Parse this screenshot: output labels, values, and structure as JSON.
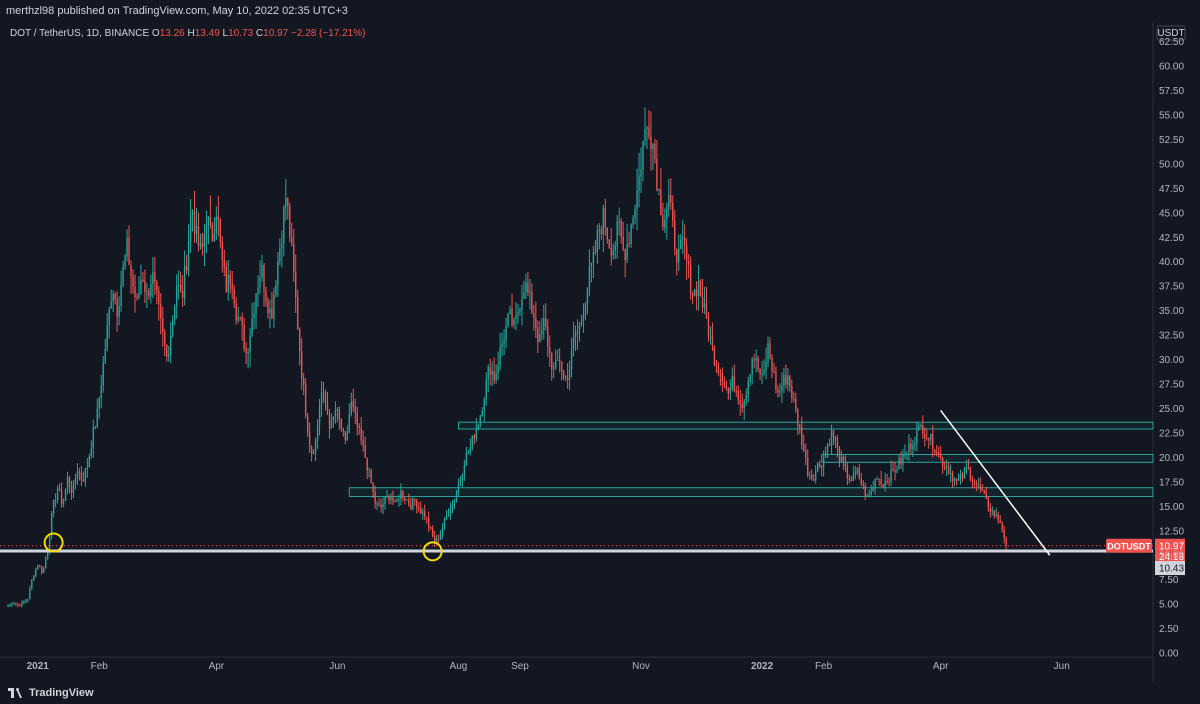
{
  "header": {
    "publisher_line": "merthzl98 published on TradingView.com, May 10, 2022 02:35 UTC+3"
  },
  "footer": {
    "brand": "TradingView"
  },
  "colors": {
    "background": "#131722",
    "up": "#26a69a",
    "down": "#ef5350",
    "zone": "#26a69a",
    "support": "#ffffff",
    "circle": "#f5d90a",
    "price_tag": "#ef5350"
  },
  "chart_data": {
    "type": "candlestick",
    "symbol_line": {
      "symbol": "DOT / TetherUS, 1D, BINANCE",
      "open_label": "O",
      "open": "13.26",
      "high_label": "H",
      "high": "13.49",
      "low_label": "L",
      "low": "10.73",
      "close_label": "C",
      "close": "10.97",
      "change": "−2.28 (−17.21%)"
    },
    "currency": "USDT",
    "ylim": [
      -0.4,
      64.5
    ],
    "y_ticks": [
      "62.50",
      "60.00",
      "57.50",
      "55.00",
      "52.50",
      "50.00",
      "47.50",
      "45.00",
      "42.50",
      "40.00",
      "37.50",
      "35.00",
      "32.50",
      "30.00",
      "27.50",
      "25.00",
      "22.50",
      "20.00",
      "17.50",
      "15.00",
      "12.50",
      "10.00",
      "7.50",
      "5.00",
      "2.50",
      "0.00"
    ],
    "x_ticks": [
      {
        "label": "2021",
        "day": 0,
        "bold": true
      },
      {
        "label": "Feb",
        "day": 31,
        "bold": false
      },
      {
        "label": "Apr",
        "day": 90,
        "bold": false
      },
      {
        "label": "Jun",
        "day": 151,
        "bold": false
      },
      {
        "label": "Aug",
        "day": 212,
        "bold": false
      },
      {
        "label": "Sep",
        "day": 243,
        "bold": false
      },
      {
        "label": "Nov",
        "day": 304,
        "bold": false
      },
      {
        "label": "2022",
        "day": 365,
        "bold": true
      },
      {
        "label": "Feb",
        "day": 396,
        "bold": false
      },
      {
        "label": "Apr",
        "day": 455,
        "bold": false
      },
      {
        "label": "Jun",
        "day": 516,
        "bold": false
      }
    ],
    "xlim_days": [
      -16,
      562
    ],
    "first_candle_day": -15,
    "price_path_close": [
      4.8,
      5.2,
      4.9,
      5.1,
      5.6,
      7.8,
      9.1,
      8.2,
      10.6,
      14.8,
      16.9,
      15.2,
      17.8,
      16.4,
      18.9,
      17.6,
      19.2,
      22.1,
      24.5,
      28.7,
      33.1,
      37.8,
      35.2,
      38.6,
      41.4,
      37.9,
      35.5,
      39.1,
      36.4,
      38.8,
      35.9,
      32.8,
      30.1,
      33.6,
      37.9,
      36.1,
      40.4,
      45.9,
      42.3,
      40.6,
      44.8,
      42.1,
      45.7,
      40.2,
      37.4,
      38.9,
      34.8,
      33.3,
      30.5,
      33.7,
      37.2,
      39.4,
      36.6,
      34.4,
      38.8,
      42.5,
      46.9,
      41.6,
      35.7,
      29.5,
      24.6,
      20.4,
      21.7,
      26.8,
      25.3,
      22.9,
      24.9,
      23.2,
      21.1,
      25.7,
      23.8,
      21.8,
      19.9,
      17.6,
      15.2,
      14.8,
      15.7,
      16.2,
      14.9,
      16.5,
      15.9,
      15.1,
      15.6,
      14.6,
      14.1,
      12.6,
      11.2,
      12.1,
      13.6,
      14.9,
      15.8,
      17.6,
      19.9,
      20.8,
      22.6,
      24.1,
      26.8,
      29.4,
      28.1,
      30.6,
      32.7,
      34.4,
      33.1,
      35.8,
      37.9,
      36.1,
      34.4,
      31.6,
      33.9,
      30.7,
      28.6,
      30.3,
      27.8,
      28.9,
      32.3,
      33.1,
      35.7,
      38.4,
      40.2,
      43.3,
      44.6,
      42.1,
      41.4,
      43.6,
      40.8,
      42.5,
      45.3,
      48.2,
      52.6,
      54.3,
      51.8,
      47.3,
      44.2,
      46.6,
      42.7,
      40.4,
      41.8,
      38.9,
      36.6,
      37.9,
      35.4,
      33.2,
      30.6,
      29.4,
      28.3,
      26.4,
      27.8,
      26.6,
      25.4,
      27.9,
      30.6,
      29.1,
      27.7,
      31.3,
      28.9,
      26.4,
      27.6,
      28.4,
      26.1,
      23.8,
      21.4,
      18.7,
      17.9,
      19.1,
      19.6,
      21.2,
      22.6,
      20.7,
      19.3,
      18.2,
      17.6,
      18.5,
      17.2,
      15.8,
      16.6,
      18.3,
      17.2,
      17.8,
      18.4,
      19.1,
      19.8,
      20.6,
      21.5,
      22.4,
      23.2,
      22.3,
      21.6,
      20.8,
      19.6,
      19.1,
      18.3,
      17.4,
      17.9,
      18.8,
      18.1,
      17.2,
      16.6,
      15.4,
      14.6,
      13.9,
      13.26,
      10.97
    ],
    "last_price_label": "10.97",
    "countdown_label": "24:18",
    "support_level_label": "10.43",
    "ticker_tag": "DOTUSDT",
    "support_level": 10.43,
    "zones": [
      {
        "y1": 22.9,
        "y2": 23.6,
        "day_start": 212
      },
      {
        "y1": 19.5,
        "y2": 20.3,
        "day_start": 395
      },
      {
        "y1": 16.0,
        "y2": 16.9,
        "day_start": 157
      }
    ],
    "trendline": {
      "day1": 455,
      "price1": 24.8,
      "day2": 510,
      "price2": 10.0
    },
    "highlight_circles": [
      {
        "day": 8,
        "price": 11.3
      },
      {
        "day": 199,
        "price": 10.4
      }
    ]
  }
}
